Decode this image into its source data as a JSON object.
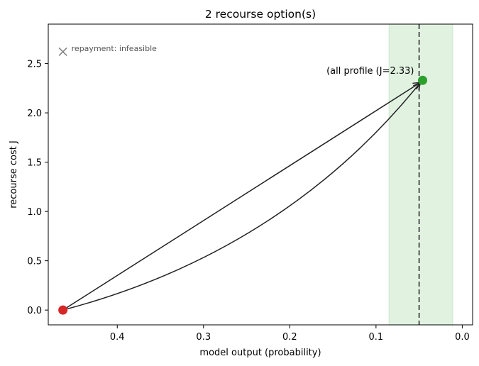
{
  "chart_data": {
    "type": "scatter",
    "title": "2 recourse option(s)",
    "xlabel": "model output (probability)",
    "ylabel": "recourse cost J",
    "xlim": [
      0.48,
      -0.012
    ],
    "ylim": [
      -0.15,
      2.9
    ],
    "x_inverted": true,
    "xticks": [
      0.4,
      0.3,
      0.2,
      0.1,
      0.0
    ],
    "xtick_labels": [
      "0.4",
      "0.3",
      "0.2",
      "0.1",
      "0.0"
    ],
    "yticks": [
      0.0,
      0.5,
      1.0,
      1.5,
      2.0,
      2.5
    ],
    "ytick_labels": [
      "0.0",
      "0.5",
      "1.0",
      "1.5",
      "2.0",
      "2.5"
    ],
    "threshold": 0.05,
    "band": [
      0.085,
      0.011
    ],
    "colors": {
      "origin": "#d62728",
      "target": "#2ca02c",
      "band": "#2ca02c",
      "threshold": "#555555",
      "arrow": "#222222",
      "infeasible": "#808080"
    },
    "points": [
      {
        "role": "origin",
        "x": 0.463,
        "y": 0.0
      },
      {
        "role": "target",
        "x": 0.046,
        "y": 2.33
      }
    ],
    "paths": [
      {
        "from": [
          0.463,
          0.0
        ],
        "to": [
          0.046,
          2.33
        ],
        "shape": "straight"
      },
      {
        "from": [
          0.463,
          0.0
        ],
        "to": [
          0.046,
          2.33
        ],
        "shape": "curved"
      }
    ],
    "annotations": [
      {
        "text": "(all profile (J=2.33)",
        "x": 0.046,
        "y": 2.33
      }
    ],
    "infeasible": [
      {
        "text": "repayment: infeasible",
        "x": 0.463,
        "y": 2.62
      }
    ]
  }
}
